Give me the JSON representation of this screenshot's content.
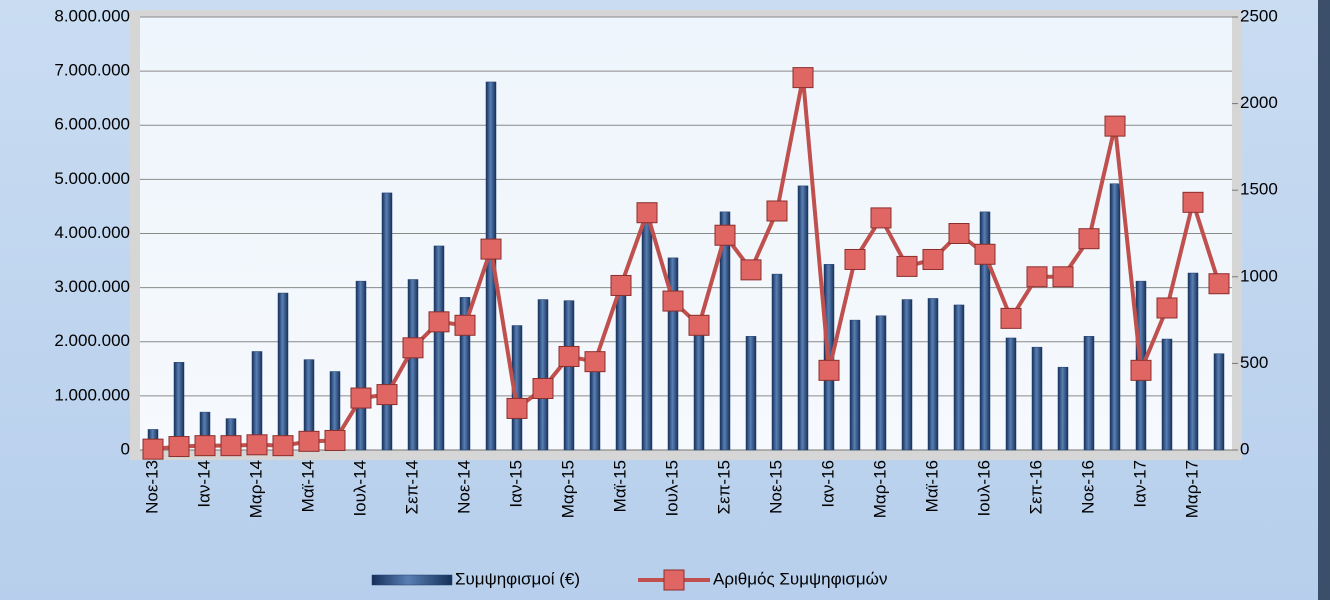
{
  "chart_data": {
    "type": "bar_line",
    "categories": [
      "Νοε-13",
      null,
      "Ιαν-14",
      null,
      "Μαρ-14",
      null,
      "Μαϊ-14",
      null,
      "Ιουλ-14",
      null,
      "Σεπ-14",
      null,
      "Νοε-14",
      null,
      "Ιαν-15",
      null,
      "Μαρ-15",
      null,
      "Μαϊ-15",
      null,
      "Ιουλ-15",
      null,
      "Σεπ-15",
      null,
      "Νοε-15",
      null,
      "Ιαν-16",
      null,
      "Μαρ-16",
      null,
      "Μαϊ-16",
      null,
      "Ιουλ-16",
      null,
      "Σεπ-16",
      null,
      "Νοε-16",
      null,
      "Ιαν-17",
      null,
      "Μαρ-17",
      null
    ],
    "series": [
      {
        "name": "Συμψηφισμοί (€)",
        "type": "bar",
        "color": "#1f3d6b",
        "values": [
          380000,
          1620000,
          700000,
          580000,
          1820000,
          2900000,
          1670000,
          1450000,
          3120000,
          4750000,
          3150000,
          3770000,
          2820000,
          6800000,
          2300000,
          2780000,
          2760000,
          1600000,
          2900000,
          4200000,
          3550000,
          2300000,
          4400000,
          2100000,
          3250000,
          4880000,
          3430000,
          2400000,
          2480000,
          2780000,
          2800000,
          2680000,
          4400000,
          2070000,
          1900000,
          1530000,
          2100000,
          4920000,
          3120000,
          2050000,
          3270000,
          1780000
        ]
      },
      {
        "name": "Αριθμός Συμψηφισμών",
        "type": "line",
        "axis": "y2",
        "color": "#c0504d",
        "values": [
          5,
          20,
          25,
          25,
          30,
          25,
          50,
          55,
          300,
          320,
          590,
          740,
          720,
          1160,
          240,
          355,
          540,
          510,
          950,
          1370,
          860,
          720,
          1240,
          1040,
          1380,
          2150,
          460,
          1100,
          1340,
          1060,
          1100,
          1250,
          1130,
          760,
          1000,
          1000,
          1220,
          1870,
          460,
          820,
          1430,
          960
        ]
      }
    ],
    "ylim": [
      0,
      8000000
    ],
    "yticks": [
      0,
      {
        "value": 1000000,
        "label": "1.000.000"
      },
      {
        "value": 2000000,
        "label": "2.000.000"
      },
      {
        "value": 3000000,
        "label": "3.000.000"
      },
      {
        "value": 4000000,
        "label": "4.000.000"
      },
      {
        "value": 5000000,
        "label": "5.000.000"
      },
      {
        "value": 6000000,
        "label": "6.000.000"
      },
      {
        "value": 7000000,
        "label": "7.000.000"
      },
      {
        "value": 8000000,
        "label": "8.000.000"
      }
    ],
    "y2lim": [
      0,
      2500
    ],
    "y2ticks": [
      0,
      500,
      1000,
      1500,
      2000,
      2500
    ],
    "grid": true,
    "legend": "bottom"
  }
}
